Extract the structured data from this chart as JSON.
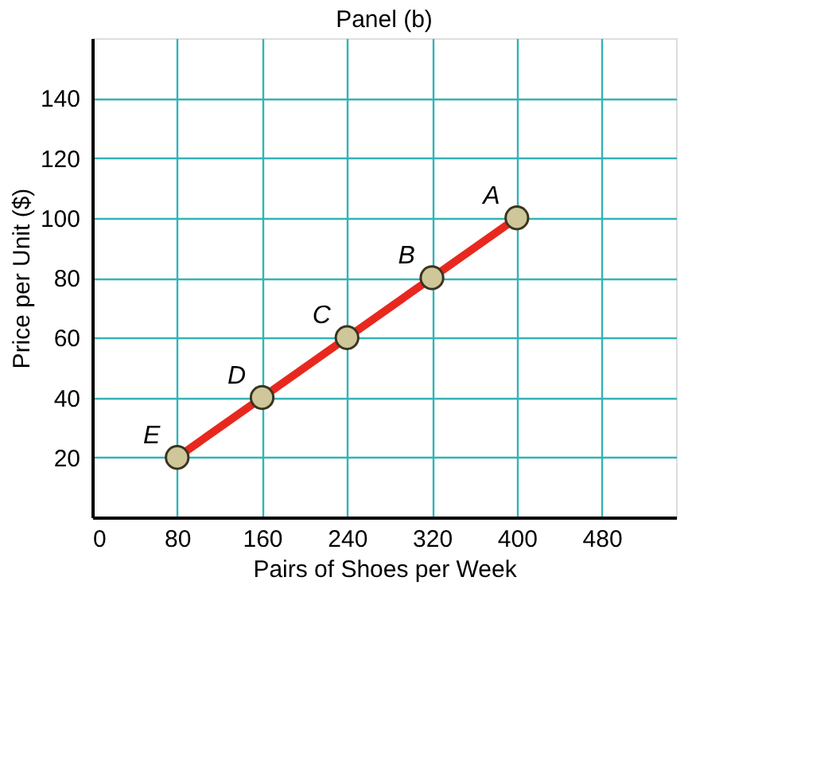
{
  "chart_data": {
    "type": "line",
    "title": "Panel (b)",
    "xlabel": "Pairs of Shoes per Week",
    "ylabel": "Price per Unit ($)",
    "x": [
      80,
      160,
      240,
      320,
      400
    ],
    "series": [
      {
        "color": "#e8281e",
        "values": [
          20,
          40,
          60,
          80,
          100
        ]
      }
    ],
    "xlim": [
      0,
      550
    ],
    "xticks": [
      0,
      80,
      160,
      240,
      320,
      400,
      480
    ],
    "ylim": [
      0,
      160
    ],
    "yticks": [
      20,
      40,
      60,
      80,
      100,
      120,
      140
    ],
    "grid": true,
    "marker": "circle",
    "line_style": "solid",
    "annotations": [
      {
        "text": "A",
        "x": 400,
        "y": 100
      },
      {
        "text": "B",
        "x": 320,
        "y": 80
      },
      {
        "text": "C",
        "x": 240,
        "y": 60
      },
      {
        "text": "D",
        "x": 160,
        "y": 40
      },
      {
        "text": "E",
        "x": 80,
        "y": 20
      }
    ]
  }
}
